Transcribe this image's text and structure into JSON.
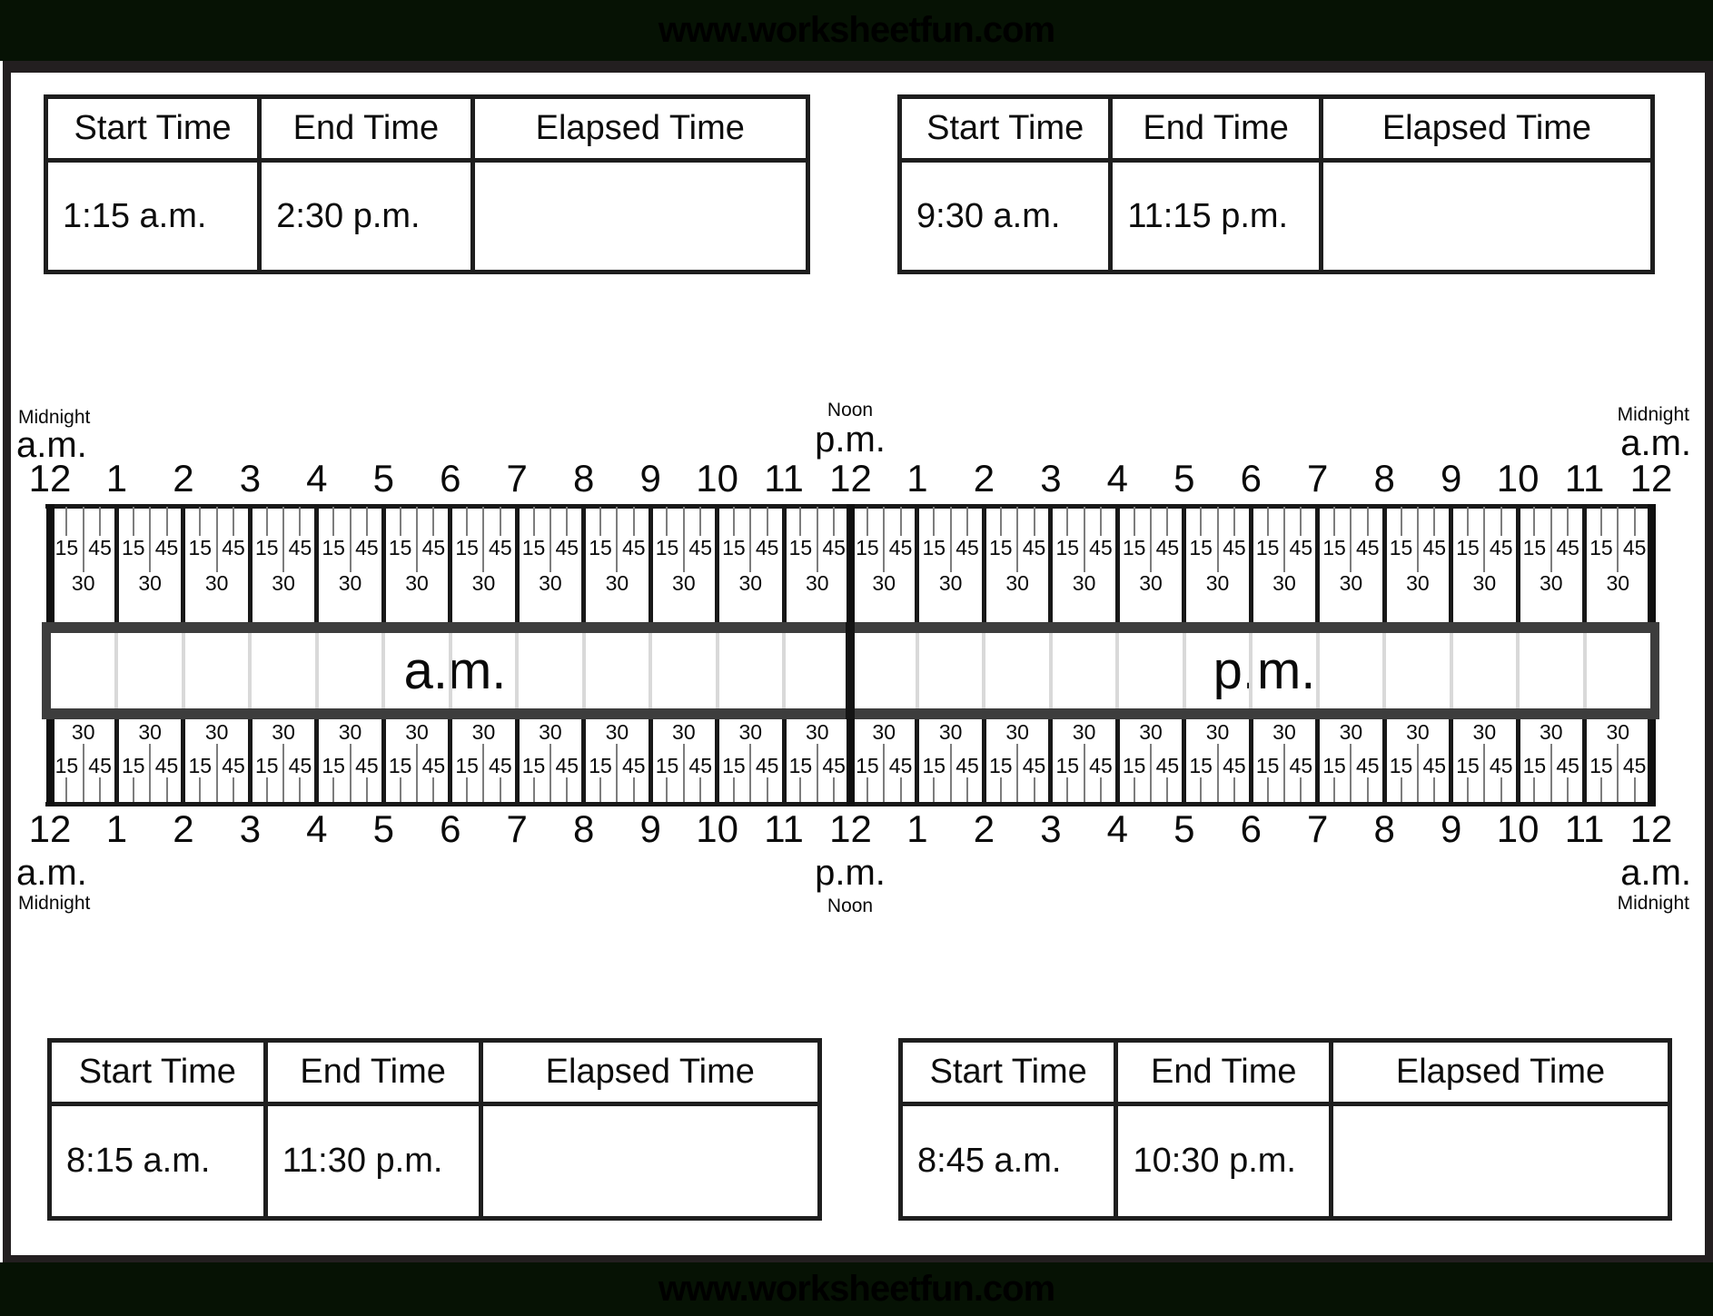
{
  "watermark": {
    "top_text": "www.worksheetfun.com",
    "bottom_text": "www.worksheetfun.com"
  },
  "tables": {
    "headers": [
      "Start Time",
      "End Time",
      "Elapsed Time"
    ],
    "problems": [
      {
        "start_time": "1:15 a.m.",
        "end_time": "2:30 p.m.",
        "elapsed_time": ""
      },
      {
        "start_time": "9:30 a.m.",
        "end_time": "11:15 p.m.",
        "elapsed_time": ""
      },
      {
        "start_time": "8:15 a.m.",
        "end_time": "11:30 p.m.",
        "elapsed_time": ""
      },
      {
        "start_time": "8:45 a.m.",
        "end_time": "10:30 p.m.",
        "elapsed_time": ""
      }
    ]
  },
  "number_line": {
    "hour_labels": [
      "12",
      "1",
      "2",
      "3",
      "4",
      "5",
      "6",
      "7",
      "8",
      "9",
      "10",
      "11",
      "12",
      "1",
      "2",
      "3",
      "4",
      "5",
      "6",
      "7",
      "8",
      "9",
      "10",
      "11",
      "12"
    ],
    "minor_tick_labels": [
      "15",
      "30",
      "45"
    ],
    "band": {
      "am_label": "a.m.",
      "pm_label": "p.m."
    },
    "annotations": {
      "left_small": "Midnight",
      "left_large": "a.m.",
      "center_small": "Noon",
      "center_large": "p.m.",
      "right_small": "Midnight",
      "right_large": "a.m."
    }
  },
  "colors": {
    "bar_background": "#061204",
    "frame_border": "#231f20",
    "table_border": "#1e1e1e",
    "band_border": "#3d3d3d",
    "hour_line": "#181818",
    "minor_tick": "#7d7d7d",
    "band_hour_line": "#d9d9d9"
  }
}
